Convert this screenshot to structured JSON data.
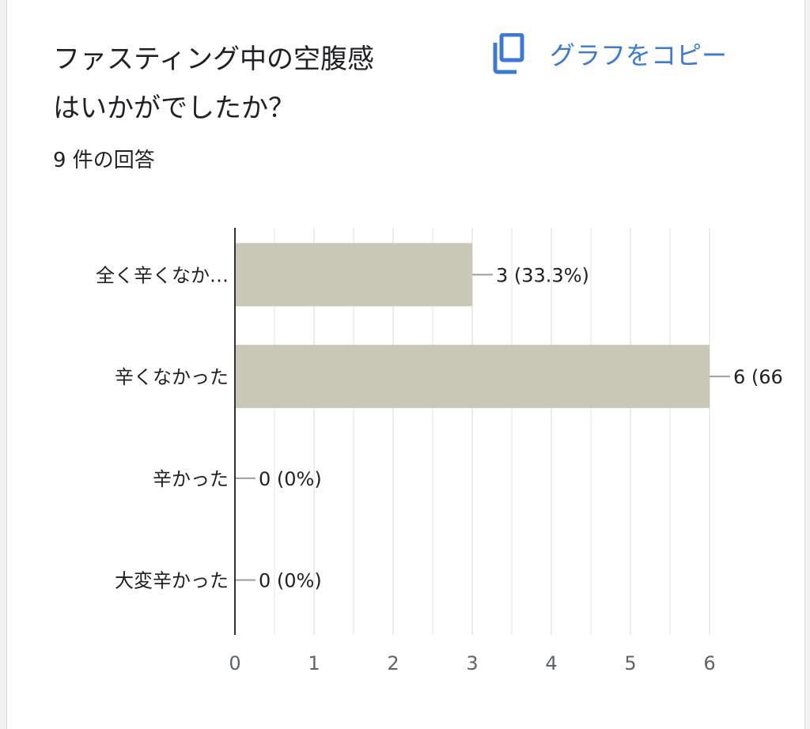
{
  "card": {
    "title_line1": "ファスティング中の空腹感",
    "title_line2": "はいかがでしたか？",
    "copy_label": "グラフをコピー",
    "copy_icon": "copy-icon",
    "response_count": "9 件の回答"
  },
  "colors": {
    "bar": "#c9c7b5",
    "accent": "#1a73e8",
    "grid": "#e6e6e6",
    "axis": "#333333"
  },
  "chart_data": {
    "type": "bar",
    "orientation": "horizontal",
    "categories": [
      "全く辛くなか…",
      "辛くなかった",
      "辛かった",
      "大変辛かった"
    ],
    "values": [
      3,
      6,
      0,
      0
    ],
    "data_labels": [
      "3 (33.3%)",
      "6 (66",
      "0 (0%)",
      "0 (0%)"
    ],
    "x_ticks": [
      0,
      1,
      2,
      3,
      4,
      5,
      6
    ],
    "xlim": [
      0,
      6
    ],
    "grid": true,
    "legend": "none"
  }
}
